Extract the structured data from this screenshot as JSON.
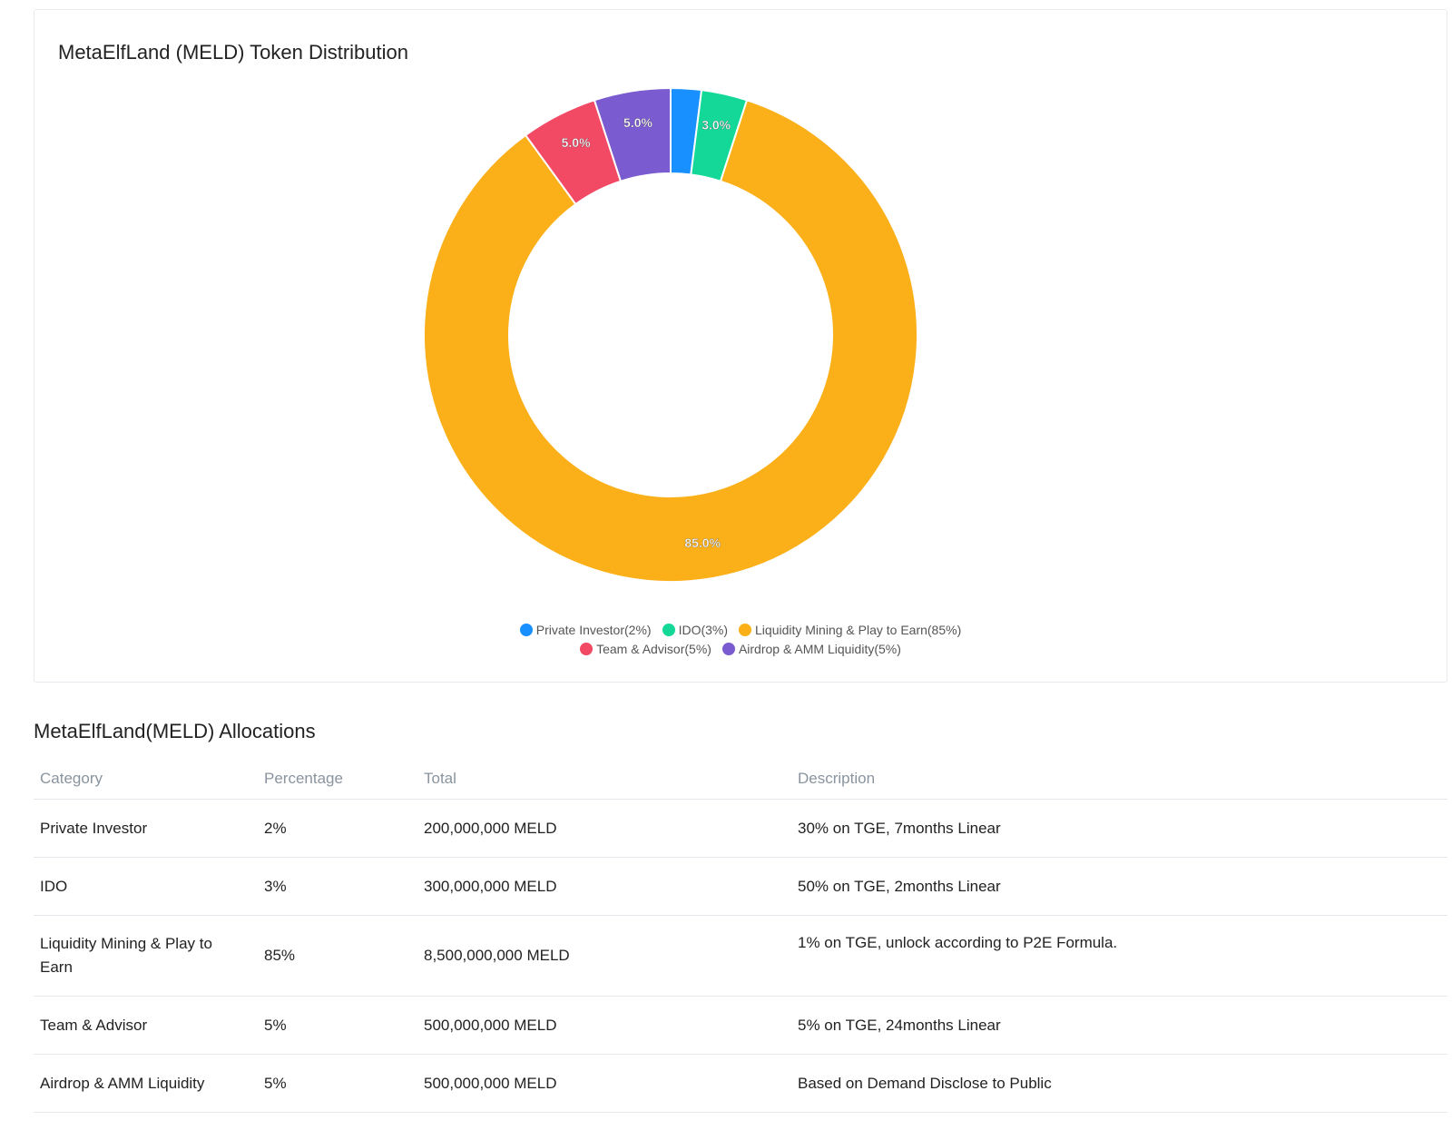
{
  "chart_title": "MetaElfLand (MELD) Token Distribution",
  "chart_data": {
    "type": "pie",
    "title": "MetaElfLand (MELD) Token Distribution",
    "categories": [
      "Private Investor",
      "IDO",
      "Liquidity Mining & Play to Earn",
      "Team & Advisor",
      "Airdrop & AMM Liquidity"
    ],
    "values": [
      2,
      3,
      85,
      5,
      5
    ],
    "colors": [
      "#1890ff",
      "#13d897",
      "#fbb01a",
      "#f24965",
      "#7a5bd0"
    ],
    "slice_labels": [
      "",
      "3.0%",
      "85.0%",
      "5.0%",
      "5.0%"
    ],
    "legend": [
      "Private Investor(2%)",
      "IDO(3%)",
      "Liquidity Mining & Play to Earn(85%)",
      "Team & Advisor(5%)",
      "Airdrop & AMM Liquidity(5%)"
    ],
    "legend_position": "bottom",
    "donut": true
  },
  "allocations": {
    "title": "MetaElfLand(MELD) Allocations",
    "headers": {
      "category": "Category",
      "percentage": "Percentage",
      "total": "Total",
      "description": "Description"
    },
    "rows": [
      {
        "category": "Private Investor",
        "percentage": "2%",
        "total": "200,000,000 MELD",
        "description": "30% on TGE, 7months Linear"
      },
      {
        "category": "IDO",
        "percentage": "3%",
        "total": "300,000,000 MELD",
        "description": "50% on TGE, 2months Linear"
      },
      {
        "category": "Liquidity Mining & Play to Earn",
        "percentage": "85%",
        "total": "8,500,000,000 MELD",
        "description": "1% on TGE, unlock according to P2E Formula."
      },
      {
        "category": "Team & Advisor",
        "percentage": "5%",
        "total": "500,000,000 MELD",
        "description": "5% on TGE, 24months Linear"
      },
      {
        "category": "Airdrop & AMM Liquidity",
        "percentage": "5%",
        "total": "500,000,000 MELD",
        "description": "Based on Demand Disclose to Public"
      }
    ]
  }
}
